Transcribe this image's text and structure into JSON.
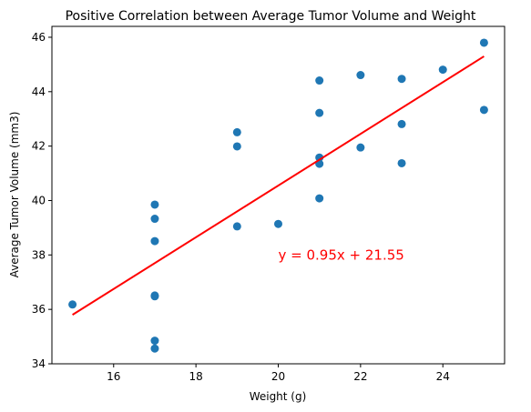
{
  "chart_data": {
    "type": "scatter",
    "title": "Positive Correlation between Average Tumor Volume and Weight",
    "xlabel": "Weight (g)",
    "ylabel": "Average Tumor Volume (mm3)",
    "xlim": [
      14.5,
      25.5
    ],
    "ylim": [
      34,
      46.4
    ],
    "xticks": [
      16,
      18,
      20,
      22,
      24
    ],
    "yticks": [
      34,
      36,
      38,
      40,
      42,
      44,
      46
    ],
    "grid": false,
    "colors": {
      "points": "#1f77b4",
      "regression": "#ff0000",
      "annotation": "#ff0000"
    },
    "points": [
      {
        "x": 15,
        "y": 36.18
      },
      {
        "x": 17,
        "y": 39.85
      },
      {
        "x": 17,
        "y": 39.33
      },
      {
        "x": 17,
        "y": 38.51
      },
      {
        "x": 17,
        "y": 36.51
      },
      {
        "x": 17,
        "y": 36.48
      },
      {
        "x": 17,
        "y": 34.85
      },
      {
        "x": 17,
        "y": 34.56
      },
      {
        "x": 19,
        "y": 42.51
      },
      {
        "x": 19,
        "y": 41.99
      },
      {
        "x": 19,
        "y": 39.05
      },
      {
        "x": 20,
        "y": 39.14
      },
      {
        "x": 21,
        "y": 44.41
      },
      {
        "x": 21,
        "y": 43.22
      },
      {
        "x": 21,
        "y": 41.58
      },
      {
        "x": 21,
        "y": 41.35
      },
      {
        "x": 21,
        "y": 40.08
      },
      {
        "x": 22,
        "y": 44.61
      },
      {
        "x": 22,
        "y": 41.95
      },
      {
        "x": 23,
        "y": 44.47
      },
      {
        "x": 23,
        "y": 42.81
      },
      {
        "x": 23,
        "y": 41.37
      },
      {
        "x": 24,
        "y": 44.81
      },
      {
        "x": 25,
        "y": 45.8
      },
      {
        "x": 25,
        "y": 43.33
      }
    ],
    "regression": {
      "slope": 0.95,
      "intercept": 21.55,
      "x_range": [
        15,
        25
      ],
      "annotation": {
        "text": "y = 0.95x + 21.55",
        "x": 20,
        "y": 38
      }
    }
  }
}
